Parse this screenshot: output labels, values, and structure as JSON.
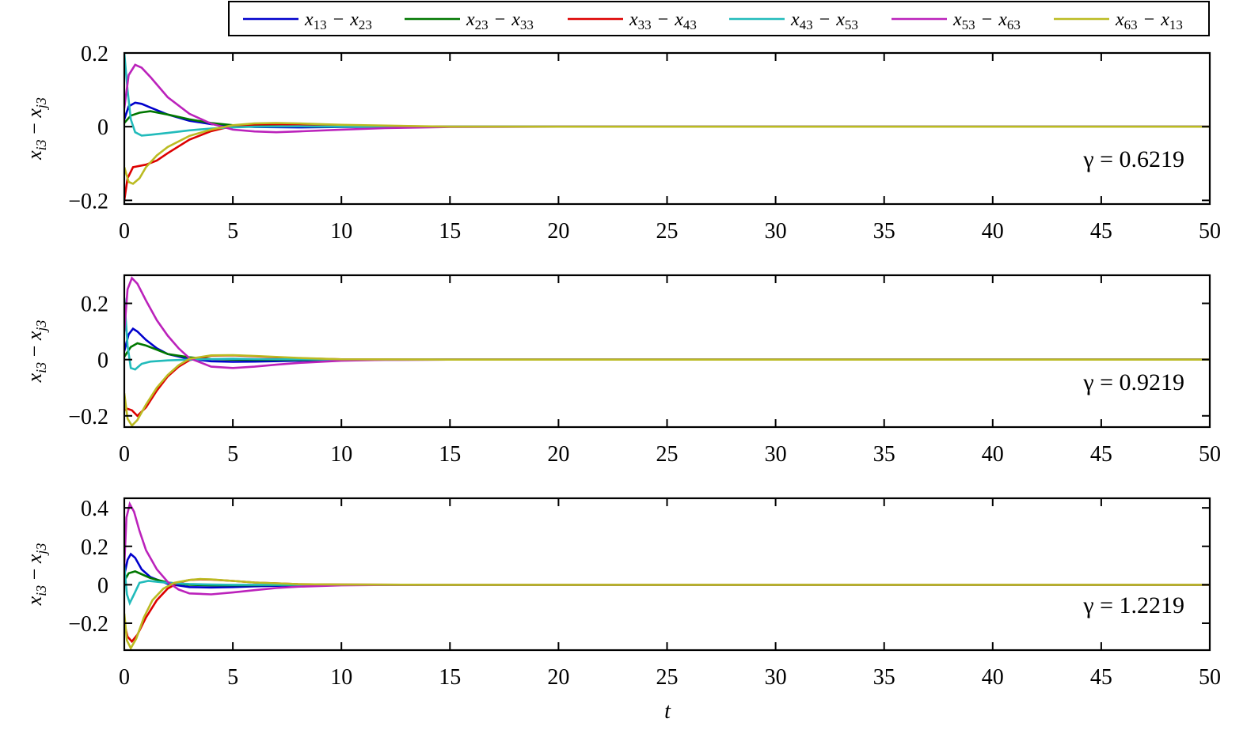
{
  "legend": {
    "entries": [
      {
        "label": "x13 − x23",
        "color": "#0000cc",
        "a": "x",
        "a_sub": "13",
        "b": "x",
        "b_sub": "23"
      },
      {
        "label": "x23 − x33",
        "color": "#007700",
        "a": "x",
        "a_sub": "23",
        "b": "x",
        "b_sub": "33"
      },
      {
        "label": "x33 − x43",
        "color": "#dd0000",
        "a": "x",
        "a_sub": "33",
        "b": "x",
        "b_sub": "43"
      },
      {
        "label": "x43 − x53",
        "color": "#22bbbb",
        "a": "x",
        "a_sub": "43",
        "b": "x",
        "b_sub": "53"
      },
      {
        "label": "x53 − x63",
        "color": "#bb22bb",
        "a": "x",
        "a_sub": "53",
        "b": "x",
        "b_sub": "63"
      },
      {
        "label": "x63 − x13",
        "color": "#bbbb22",
        "a": "x",
        "a_sub": "63",
        "b": "x",
        "b_sub": "13"
      }
    ],
    "minus": "−",
    "placement": "top-right"
  },
  "xlabel": "t",
  "ylabel": {
    "a": "x",
    "a_sub": "i3",
    "minus": " − ",
    "b": "x",
    "b_sub": "j3"
  },
  "chart_data": [
    {
      "type": "line",
      "annotation": "γ = 0.6219",
      "xlim": [
        0,
        50
      ],
      "ylim": [
        -0.21,
        0.2
      ],
      "xticks": [
        0,
        5,
        10,
        15,
        20,
        25,
        30,
        35,
        40,
        45,
        50
      ],
      "yticks": [
        -0.2,
        0,
        0.2
      ],
      "yticklabels": [
        "−0.2",
        "0",
        "0.2"
      ],
      "grid": false,
      "series": [
        {
          "name": "x13 − x23",
          "x": [
            0,
            0.2,
            0.5,
            0.8,
            1.2,
            2,
            3,
            4,
            5,
            6,
            8,
            10,
            15,
            20,
            50
          ],
          "y": [
            0.02,
            0.055,
            0.065,
            0.062,
            0.052,
            0.033,
            0.016,
            0.007,
            0.002,
            -0.001,
            -0.002,
            -0.001,
            0,
            0,
            0
          ]
        },
        {
          "name": "x23 − x33",
          "x": [
            0,
            0.3,
            0.7,
            1.2,
            2,
            3,
            4,
            5,
            6,
            8,
            10,
            15,
            20,
            50
          ],
          "y": [
            0.01,
            0.03,
            0.038,
            0.042,
            0.033,
            0.02,
            0.01,
            0.004,
            0.002,
            0.001,
            0,
            0,
            0,
            0
          ]
        },
        {
          "name": "x33 − x43",
          "x": [
            0,
            0.15,
            0.4,
            1,
            1.5,
            2,
            3,
            4,
            5,
            6,
            7,
            8,
            10,
            15,
            20,
            50
          ],
          "y": [
            -0.2,
            -0.14,
            -0.11,
            -0.103,
            -0.092,
            -0.072,
            -0.035,
            -0.012,
            0.002,
            0.006,
            0.007,
            0.006,
            0.003,
            0,
            0,
            0
          ]
        },
        {
          "name": "x43 − x53",
          "x": [
            0,
            0.15,
            0.3,
            0.5,
            0.8,
            1.2,
            2,
            3,
            4,
            5,
            6,
            8,
            10,
            15,
            20,
            50
          ],
          "y": [
            0.2,
            0.1,
            0.02,
            -0.015,
            -0.024,
            -0.022,
            -0.017,
            -0.01,
            -0.005,
            -0.002,
            0,
            0.001,
            0,
            0,
            0,
            0
          ]
        },
        {
          "name": "x53 − x63",
          "x": [
            0,
            0.2,
            0.5,
            0.8,
            1.2,
            2,
            3,
            4,
            5,
            6,
            7,
            8,
            10,
            12,
            15,
            20,
            50
          ],
          "y": [
            0.05,
            0.14,
            0.168,
            0.16,
            0.135,
            0.08,
            0.035,
            0.008,
            -0.008,
            -0.013,
            -0.015,
            -0.013,
            -0.008,
            -0.004,
            -0.001,
            0,
            0
          ]
        },
        {
          "name": "x63 − x13",
          "x": [
            0,
            0.2,
            0.4,
            0.7,
            1,
            1.5,
            2,
            3,
            4,
            5,
            6,
            7,
            8,
            10,
            15,
            20,
            50
          ],
          "y": [
            -0.11,
            -0.15,
            -0.155,
            -0.14,
            -0.11,
            -0.078,
            -0.055,
            -0.025,
            -0.008,
            0.004,
            0.009,
            0.01,
            0.009,
            0.005,
            0,
            0,
            0
          ]
        }
      ]
    },
    {
      "type": "line",
      "annotation": "γ = 0.9219",
      "xlim": [
        0,
        50
      ],
      "ylim": [
        -0.24,
        0.3
      ],
      "xticks": [
        0,
        5,
        10,
        15,
        20,
        25,
        30,
        35,
        40,
        45,
        50
      ],
      "yticks": [
        -0.2,
        0,
        0.2
      ],
      "yticklabels": [
        "−0.2",
        "0",
        "0.2"
      ],
      "grid": false,
      "series": [
        {
          "name": "x13 − x23",
          "x": [
            0,
            0.2,
            0.4,
            0.6,
            1,
            1.5,
            2,
            3,
            4,
            5,
            6,
            8,
            10,
            15,
            50
          ],
          "y": [
            0.03,
            0.09,
            0.11,
            0.1,
            0.07,
            0.04,
            0.02,
            0.002,
            -0.006,
            -0.008,
            -0.007,
            -0.004,
            -0.001,
            0,
            0
          ]
        },
        {
          "name": "x23 − x33",
          "x": [
            0,
            0.3,
            0.6,
            1,
            1.5,
            2,
            3,
            4,
            5,
            6,
            8,
            10,
            15,
            50
          ],
          "y": [
            0.01,
            0.045,
            0.058,
            0.05,
            0.035,
            0.02,
            0.008,
            0.002,
            0,
            -0.001,
            -0.001,
            0,
            0,
            0
          ]
        },
        {
          "name": "x33 − x43",
          "x": [
            0,
            0.15,
            0.35,
            0.6,
            1,
            1.5,
            2,
            2.5,
            3,
            4,
            5,
            6,
            8,
            10,
            15,
            50
          ],
          "y": [
            -0.18,
            -0.175,
            -0.18,
            -0.2,
            -0.17,
            -0.11,
            -0.06,
            -0.025,
            -0.002,
            0.014,
            0.015,
            0.012,
            0.005,
            0.001,
            0,
            0
          ]
        },
        {
          "name": "x43 − x53",
          "x": [
            0,
            0.15,
            0.3,
            0.5,
            0.8,
            1.2,
            2,
            3,
            4,
            5,
            6,
            8,
            10,
            15,
            50
          ],
          "y": [
            0.22,
            0.05,
            -0.03,
            -0.035,
            -0.015,
            -0.007,
            -0.003,
            0,
            0.002,
            0.003,
            0.002,
            0.001,
            0,
            0,
            0
          ]
        },
        {
          "name": "x53 − x63",
          "x": [
            0,
            0.15,
            0.35,
            0.6,
            1,
            1.5,
            2,
            2.5,
            3,
            4,
            5,
            6,
            7,
            8,
            10,
            12,
            15,
            50
          ],
          "y": [
            0.1,
            0.25,
            0.29,
            0.27,
            0.21,
            0.14,
            0.085,
            0.04,
            0.005,
            -0.025,
            -0.03,
            -0.025,
            -0.018,
            -0.012,
            -0.004,
            -0.001,
            0,
            0
          ]
        },
        {
          "name": "x63 − x13",
          "x": [
            0,
            0.15,
            0.35,
            0.6,
            1,
            1.5,
            2,
            2.5,
            3,
            4,
            5,
            6,
            8,
            10,
            15,
            50
          ],
          "y": [
            -0.12,
            -0.21,
            -0.235,
            -0.215,
            -0.16,
            -0.1,
            -0.055,
            -0.02,
            0.003,
            0.015,
            0.016,
            0.013,
            0.006,
            0.001,
            0,
            0
          ]
        }
      ]
    },
    {
      "type": "line",
      "annotation": "γ = 1.2219",
      "xlim": [
        0,
        50
      ],
      "ylim": [
        -0.34,
        0.45
      ],
      "xticks": [
        0,
        5,
        10,
        15,
        20,
        25,
        30,
        35,
        40,
        45,
        50
      ],
      "yticks": [
        -0.2,
        0,
        0.2,
        0.4
      ],
      "yticklabels": [
        "−0.2",
        "0",
        "0.2",
        "0.4"
      ],
      "grid": false,
      "series": [
        {
          "name": "x13 − x23",
          "x": [
            0,
            0.15,
            0.3,
            0.5,
            0.8,
            1.2,
            2,
            3,
            4,
            5,
            6,
            8,
            10,
            15,
            50
          ],
          "y": [
            0.05,
            0.13,
            0.16,
            0.14,
            0.08,
            0.04,
            0.005,
            -0.012,
            -0.014,
            -0.012,
            -0.008,
            -0.003,
            0,
            0,
            0
          ]
        },
        {
          "name": "x23 − x33",
          "x": [
            0,
            0.2,
            0.5,
            0.8,
            1.2,
            2,
            3,
            4,
            5,
            6,
            8,
            10,
            15,
            50
          ],
          "y": [
            0.02,
            0.06,
            0.07,
            0.055,
            0.035,
            0.012,
            0,
            -0.003,
            -0.003,
            -0.002,
            -0.001,
            0,
            0,
            0
          ]
        },
        {
          "name": "x33 − x43",
          "x": [
            0,
            0.15,
            0.35,
            0.6,
            1,
            1.5,
            2,
            2.5,
            3,
            3.5,
            4,
            5,
            6,
            8,
            10,
            15,
            50
          ],
          "y": [
            -0.2,
            -0.27,
            -0.295,
            -0.26,
            -0.17,
            -0.08,
            -0.02,
            0.012,
            0.025,
            0.028,
            0.027,
            0.02,
            0.012,
            0.003,
            0.001,
            0,
            0
          ]
        },
        {
          "name": "x43 − x53",
          "x": [
            0,
            0.12,
            0.25,
            0.45,
            0.7,
            1.1,
            2,
            3,
            4,
            5,
            6,
            8,
            10,
            15,
            50
          ],
          "y": [
            0.1,
            -0.05,
            -0.095,
            -0.05,
            0.01,
            0.02,
            0.01,
            0.004,
            0.001,
            0,
            0,
            0,
            0,
            0,
            0
          ]
        },
        {
          "name": "x53 − x63",
          "x": [
            0,
            0.1,
            0.25,
            0.45,
            0.7,
            1,
            1.5,
            2,
            2.5,
            3,
            4,
            5,
            6,
            7,
            8,
            10,
            12,
            15,
            50
          ],
          "y": [
            0.1,
            0.35,
            0.42,
            0.38,
            0.28,
            0.18,
            0.08,
            0.015,
            -0.025,
            -0.045,
            -0.05,
            -0.04,
            -0.028,
            -0.017,
            -0.01,
            -0.003,
            -0.001,
            0,
            0
          ]
        },
        {
          "name": "x63 − x13",
          "x": [
            0,
            0.12,
            0.3,
            0.55,
            0.9,
            1.3,
            1.8,
            2.3,
            3,
            3.5,
            4,
            5,
            6,
            8,
            10,
            15,
            50
          ],
          "y": [
            -0.15,
            -0.29,
            -0.33,
            -0.28,
            -0.17,
            -0.08,
            -0.02,
            0.01,
            0.025,
            0.03,
            0.028,
            0.02,
            0.012,
            0.003,
            0.001,
            0,
            0
          ]
        }
      ]
    }
  ]
}
